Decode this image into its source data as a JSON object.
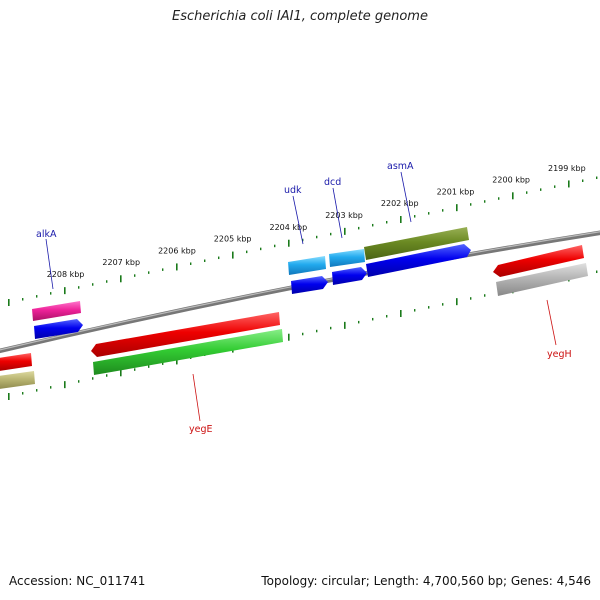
{
  "title": "Escherichia coli IAI1, complete genome",
  "footer": {
    "accession": "Accession: NC_011741",
    "stats": "Topology: circular; Length: 4,700,560 bp; Genes: 4,546"
  },
  "colors": {
    "backbone": "#888888",
    "ticks": "#1a7a1a",
    "label_blue": "#1a1aaa",
    "label_red": "#cc1111"
  },
  "scale": {
    "ticks": [
      {
        "kbp": 2199,
        "label": "2199 kbp"
      },
      {
        "kbp": 2200,
        "label": "2200 kbp"
      },
      {
        "kbp": 2201,
        "label": "2201 kbp"
      },
      {
        "kbp": 2202,
        "label": "2202 kbp"
      },
      {
        "kbp": 2203,
        "label": "2203 kbp"
      },
      {
        "kbp": 2204,
        "label": "2204 kbp"
      },
      {
        "kbp": 2205,
        "label": "2205 kbp"
      },
      {
        "kbp": 2206,
        "label": "2206 kbp"
      },
      {
        "kbp": 2207,
        "label": "2207 kbp"
      },
      {
        "kbp": 2208,
        "label": "2208 kbp"
      }
    ]
  },
  "labels": {
    "alkA": "alkA",
    "udk": "udk",
    "dcd": "dcd",
    "asmA": "asmA",
    "yegE": "yegE",
    "yegH": "yegH"
  }
}
